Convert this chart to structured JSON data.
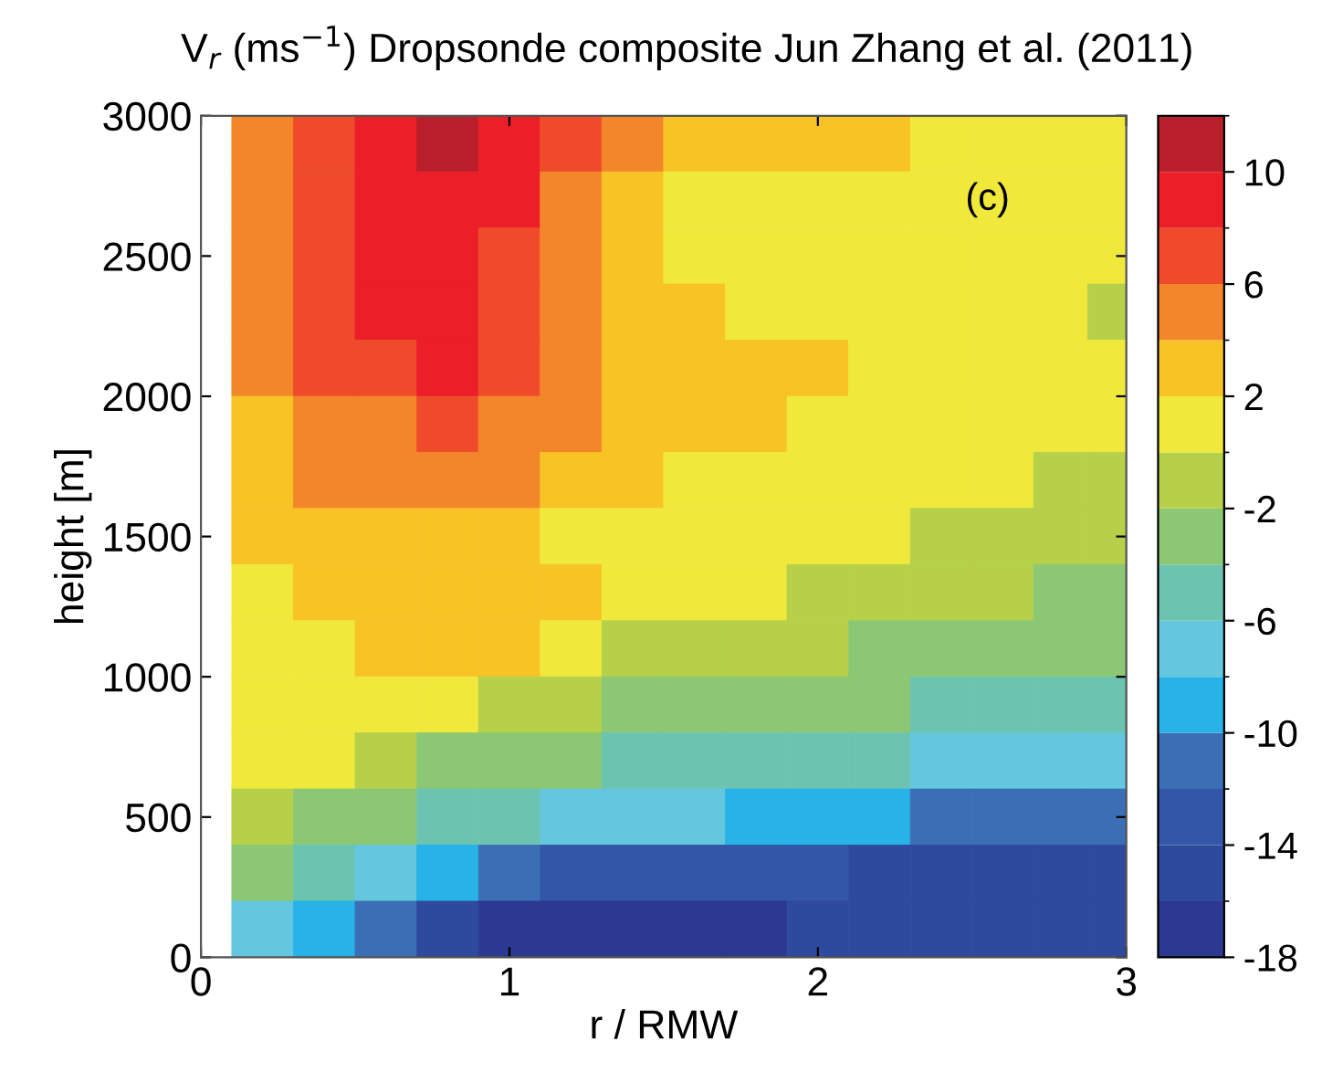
{
  "chart_data": {
    "type": "heatmap",
    "title": "V$_{r}$ (ms$^{−1}$) Dropsonde composite Jun Zhang et al. (2011)",
    "xlabel": "r / RMW",
    "ylabel": "height [m]",
    "annotations": [
      "(c)"
    ],
    "x": [
      0.2,
      0.4,
      0.6,
      0.8,
      1.0,
      1.2,
      1.4,
      1.6,
      1.8,
      2.0,
      2.2,
      2.4,
      2.6,
      2.8,
      2.95
    ],
    "y": [
      2900,
      2700,
      2500,
      2300,
      2100,
      1900,
      1700,
      1500,
      1300,
      1100,
      900,
      700,
      500,
      300,
      100
    ],
    "cells": [
      [
        5,
        7,
        9,
        11,
        9,
        7,
        5,
        3,
        3,
        3,
        3,
        1,
        1,
        1,
        1
      ],
      [
        5,
        7,
        9,
        9,
        9,
        5,
        3,
        1,
        1,
        1,
        1,
        1,
        1,
        1,
        1
      ],
      [
        5,
        7,
        9,
        9,
        7,
        5,
        3,
        1,
        1,
        1,
        1,
        1,
        1,
        1,
        1
      ],
      [
        5,
        7,
        9,
        9,
        7,
        5,
        3,
        3,
        1,
        1,
        1,
        1,
        1,
        1,
        -1
      ],
      [
        5,
        7,
        7,
        9,
        7,
        5,
        3,
        3,
        3,
        3,
        1,
        1,
        1,
        1,
        1
      ],
      [
        3,
        5,
        5,
        7,
        5,
        5,
        3,
        3,
        3,
        1,
        1,
        1,
        1,
        1,
        1
      ],
      [
        3,
        5,
        5,
        5,
        5,
        3,
        3,
        1,
        1,
        1,
        1,
        1,
        1,
        -1,
        -1
      ],
      [
        3,
        3,
        3,
        3,
        3,
        1,
        1,
        1,
        1,
        1,
        1,
        -1,
        -1,
        -1,
        -1
      ],
      [
        1,
        3,
        3,
        3,
        3,
        3,
        1,
        1,
        1,
        -1,
        -1,
        -1,
        -1,
        -3,
        -3
      ],
      [
        1,
        1,
        3,
        3,
        3,
        1,
        -1,
        -1,
        -1,
        -1,
        -3,
        -3,
        -3,
        -3,
        -3
      ],
      [
        1,
        1,
        1,
        1,
        -1,
        -1,
        -3,
        -3,
        -3,
        -3,
        -3,
        -5,
        -5,
        -5,
        -5
      ],
      [
        1,
        1,
        -1,
        -3,
        -3,
        -3,
        -5,
        -5,
        -5,
        -5,
        -5,
        -7,
        -7,
        -7,
        -7
      ],
      [
        -1,
        -3,
        -3,
        -5,
        -5,
        -7,
        -7,
        -7,
        -9,
        -9,
        -9,
        -11,
        -11,
        -11,
        -11
      ],
      [
        -3,
        -5,
        -7,
        -9,
        -11,
        -13,
        -13,
        -13,
        -13,
        -13,
        -15,
        -15,
        -15,
        -15,
        -15
      ],
      [
        -7,
        -9,
        -11,
        -15,
        -17,
        -17,
        -17,
        -17,
        -17,
        -15,
        -15,
        -15,
        -15,
        -15,
        -15
      ]
    ],
    "colors": [
      "#2b3990",
      "#2e4a9e",
      "#3356a8",
      "#3a6fb6",
      "#27b2e8",
      "#64c6df",
      "#6cc4b0",
      "#8cc873",
      "#b6d04a",
      "#f0e93c",
      "#f7c325",
      "#f3852a",
      "#ef4b2b",
      "#ec1e27",
      "#b91f2a"
    ],
    "clim": [
      -18,
      12
    ],
    "cticks": [
      -18,
      -14,
      -10,
      -6,
      -2,
      2,
      6,
      10
    ],
    "xlim": [
      0,
      3
    ],
    "xticks": [
      0,
      1,
      2,
      3
    ],
    "ylim": [
      0,
      3000
    ],
    "yticks": [
      0,
      500,
      1000,
      1500,
      2000,
      2500,
      3000
    ],
    "grid": false
  }
}
